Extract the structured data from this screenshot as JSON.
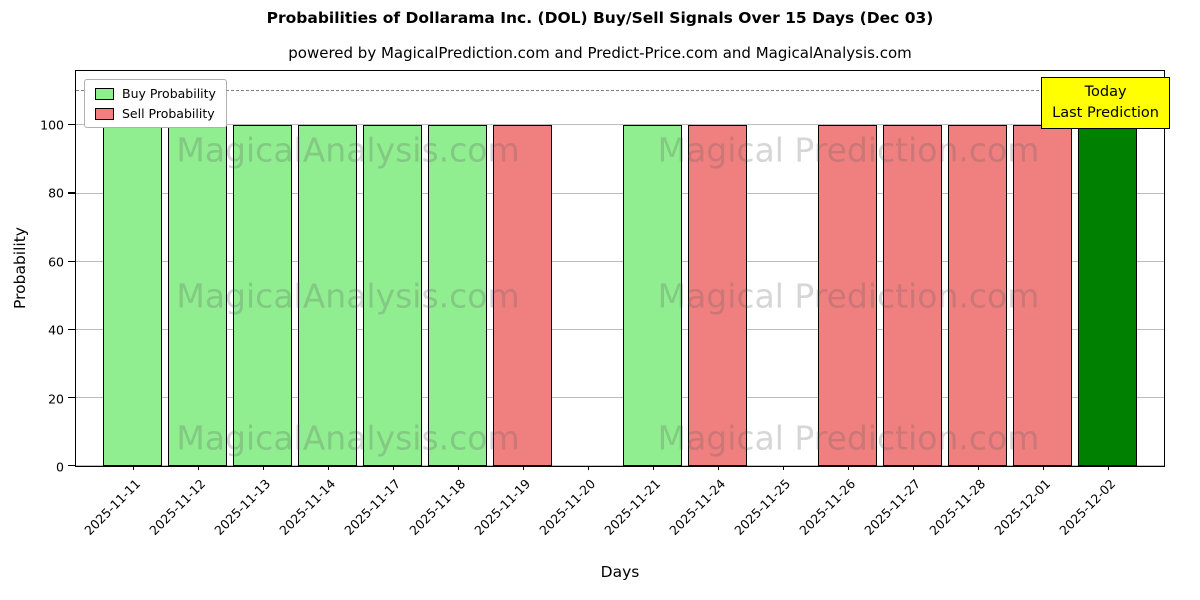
{
  "title": "Probabilities of Dollarama Inc. (DOL) Buy/Sell Signals Over 15 Days (Dec 03)",
  "subtitle": "powered by MagicalPrediction.com and Predict-Price.com and MagicalAnalysis.com",
  "legend": {
    "buy_label": "Buy Probability",
    "sell_label": "Sell Probability"
  },
  "annotation": {
    "line1": "Today",
    "line2": "Last Prediction",
    "bg_color": "#ffff00"
  },
  "watermarks": {
    "left": "MagicalAnalysis.com",
    "right": "Magical Prediction.com"
  },
  "colors": {
    "buy": "#90ee90",
    "sell": "#f08080",
    "today": "#008000",
    "dashed_line": "#808080"
  },
  "chart_data": {
    "type": "bar",
    "title": "Probabilities of Dollarama Inc. (DOL) Buy/Sell Signals Over 15 Days (Dec 03)",
    "xlabel": "Days",
    "ylabel": "Probability",
    "ylim": [
      0,
      116
    ],
    "yticks": [
      0,
      20,
      40,
      60,
      80,
      100
    ],
    "dashed_line_y": 110,
    "grid": true,
    "legend_position": "upper left",
    "categories": [
      "2025-11-11",
      "2025-11-12",
      "2025-11-13",
      "2025-11-14",
      "2025-11-17",
      "2025-11-18",
      "2025-11-19",
      "2025-11-20",
      "2025-11-21",
      "2025-11-24",
      "2025-11-25",
      "2025-11-26",
      "2025-11-27",
      "2025-11-28",
      "2025-12-01",
      "2025-12-02"
    ],
    "series": [
      {
        "name": "Buy Probability",
        "color": "#90ee90",
        "values": [
          100,
          100,
          100,
          100,
          100,
          100,
          0,
          0,
          100,
          0,
          0,
          0,
          0,
          0,
          0,
          0
        ]
      },
      {
        "name": "Sell Probability",
        "color": "#f08080",
        "values": [
          0,
          0,
          0,
          0,
          0,
          0,
          100,
          0,
          0,
          100,
          0,
          100,
          100,
          100,
          100,
          0
        ]
      },
      {
        "name": "Today Last Prediction",
        "color": "#008000",
        "values": [
          0,
          0,
          0,
          0,
          0,
          0,
          0,
          0,
          0,
          0,
          0,
          0,
          0,
          0,
          0,
          100
        ]
      }
    ]
  }
}
